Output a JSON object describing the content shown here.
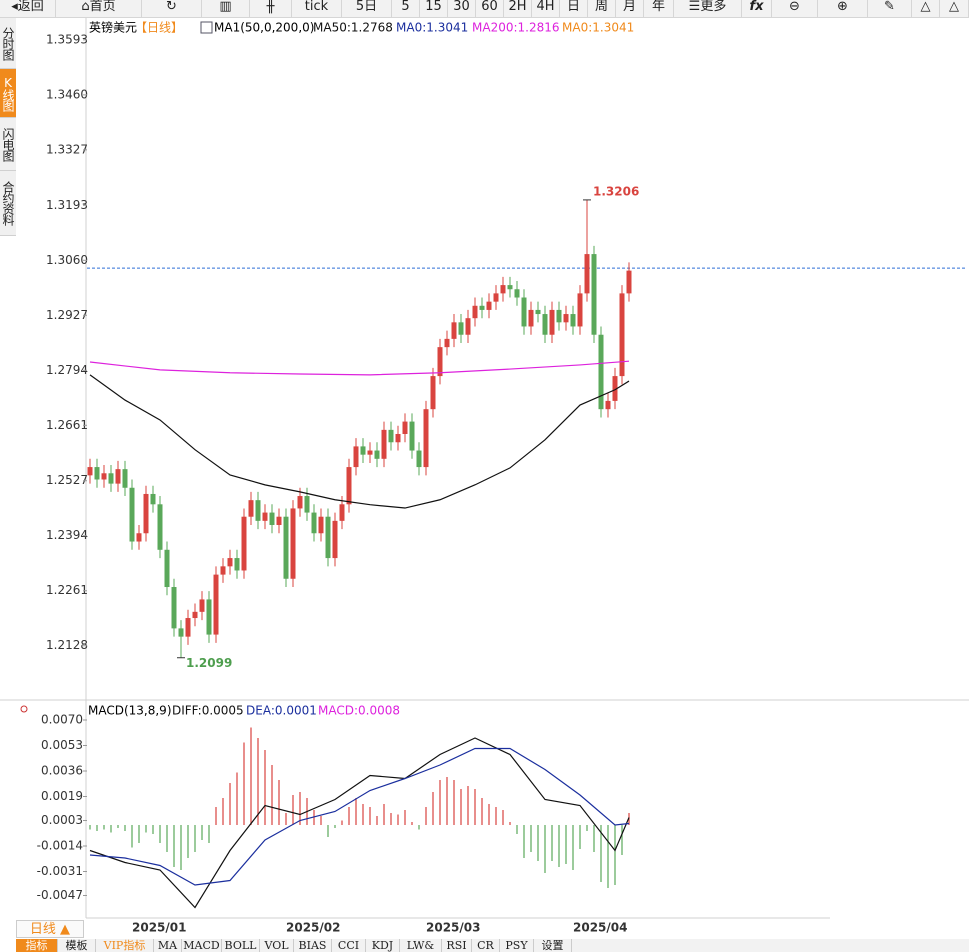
{
  "ui": {
    "toolbar": [
      "返回",
      "首页",
      "tick",
      "5日",
      "5",
      "15",
      "30",
      "60",
      "2H",
      "4H",
      "日",
      "周",
      "月",
      "年",
      "更多",
      "fx"
    ],
    "sidebar": [
      "分时图",
      "K线图",
      "闪电图",
      "合约资料"
    ],
    "period": "日线 ▲",
    "bottom_tabs": [
      "指标",
      "模板",
      "VIP指标",
      "MA",
      "MACD",
      "BOLL",
      "VOL",
      "BIAS",
      "CCI",
      "KDJ",
      "LW&",
      "RSI",
      "CR",
      "PSY",
      "设置"
    ]
  },
  "chart_data": [
    {
      "type": "candlestick",
      "title": "英镑美元",
      "period": "【日线】",
      "indicator": "MA1(50,0,200,0)",
      "categories": [
        null,
        null,
        null,
        null,
        null,
        null,
        "2025/01",
        null,
        null,
        null,
        null,
        null,
        null,
        null,
        null,
        null,
        null,
        null,
        null,
        null,
        null,
        null,
        null,
        null,
        null,
        null,
        null,
        null,
        "2025/02",
        null,
        null,
        null,
        null,
        null,
        null,
        null,
        null,
        null,
        null,
        null,
        null,
        null,
        null,
        null,
        null,
        null,
        null,
        null,
        "2025/03",
        null,
        null,
        null,
        null,
        null,
        null,
        null,
        null,
        null,
        null,
        null,
        null,
        null,
        null,
        null,
        null,
        null,
        null,
        null,
        null,
        "2025/04",
        null,
        null,
        null,
        null,
        null,
        null,
        null,
        null
      ],
      "open": [
        1.254,
        1.256,
        1.253,
        1.2545,
        1.252,
        1.2555,
        1.251,
        1.238,
        1.24,
        1.2495,
        1.247,
        1.236,
        1.227,
        1.217,
        1.215,
        1.2195,
        1.221,
        1.224,
        1.2155,
        1.23,
        1.232,
        1.234,
        1.231,
        1.244,
        1.248,
        1.243,
        1.245,
        1.242,
        1.244,
        1.229,
        1.246,
        1.249,
        1.245,
        1.24,
        1.244,
        1.234,
        1.243,
        1.247,
        1.256,
        1.261,
        1.259,
        1.26,
        1.258,
        1.265,
        1.262,
        1.264,
        1.267,
        1.26,
        1.256,
        1.27,
        1.278,
        1.285,
        1.287,
        1.291,
        1.288,
        1.292,
        1.295,
        1.294,
        1.296,
        1.298,
        1.3,
        1.299,
        1.297,
        1.29,
        1.294,
        1.293,
        1.288,
        1.294,
        1.291,
        1.293,
        1.29,
        1.298,
        1.3075,
        1.288,
        1.27,
        1.272,
        1.278,
        1.298
      ],
      "high": [
        1.258,
        1.258,
        1.2565,
        1.2565,
        1.2575,
        1.2575,
        1.253,
        1.242,
        1.2515,
        1.2515,
        1.249,
        1.238,
        1.229,
        1.219,
        1.2215,
        1.223,
        1.226,
        1.226,
        1.232,
        1.234,
        1.236,
        1.236,
        1.246,
        1.25,
        1.25,
        1.247,
        1.247,
        1.246,
        1.246,
        1.248,
        1.251,
        1.251,
        1.247,
        1.246,
        1.246,
        1.245,
        1.249,
        1.258,
        1.263,
        1.263,
        1.262,
        1.262,
        1.267,
        1.267,
        1.266,
        1.269,
        1.269,
        1.262,
        1.272,
        1.28,
        1.287,
        1.289,
        1.293,
        1.293,
        1.294,
        1.297,
        1.297,
        1.298,
        1.3,
        1.302,
        1.302,
        1.301,
        1.299,
        1.296,
        1.296,
        1.295,
        1.296,
        1.296,
        1.295,
        1.295,
        1.3,
        1.3206,
        1.3095,
        1.29,
        1.274,
        1.28,
        1.3,
        1.3055
      ],
      "low": [
        1.252,
        1.251,
        1.251,
        1.25,
        1.25,
        1.249,
        1.236,
        1.236,
        1.238,
        1.245,
        1.234,
        1.225,
        1.215,
        1.2099,
        1.213,
        1.2175,
        1.219,
        1.2135,
        1.2135,
        1.228,
        1.23,
        1.229,
        1.229,
        1.242,
        1.241,
        1.241,
        1.24,
        1.24,
        1.227,
        1.227,
        1.244,
        1.243,
        1.238,
        1.238,
        1.232,
        1.232,
        1.241,
        1.245,
        1.254,
        1.257,
        1.257,
        1.256,
        1.256,
        1.26,
        1.26,
        1.262,
        1.258,
        1.254,
        1.254,
        1.268,
        1.276,
        1.283,
        1.285,
        1.286,
        1.286,
        1.29,
        1.292,
        1.292,
        1.294,
        1.296,
        1.297,
        1.295,
        1.288,
        1.288,
        1.291,
        1.286,
        1.286,
        1.289,
        1.289,
        1.288,
        1.288,
        1.296,
        1.286,
        1.268,
        1.268,
        1.27,
        1.276,
        1.296
      ],
      "close": [
        1.256,
        1.253,
        1.2545,
        1.252,
        1.2555,
        1.251,
        1.238,
        1.24,
        1.2495,
        1.247,
        1.236,
        1.227,
        1.217,
        1.215,
        1.2195,
        1.221,
        1.224,
        1.2155,
        1.23,
        1.232,
        1.234,
        1.231,
        1.244,
        1.248,
        1.243,
        1.245,
        1.242,
        1.244,
        1.229,
        1.246,
        1.249,
        1.245,
        1.24,
        1.244,
        1.234,
        1.243,
        1.247,
        1.256,
        1.261,
        1.259,
        1.26,
        1.258,
        1.265,
        1.262,
        1.264,
        1.267,
        1.26,
        1.256,
        1.27,
        1.278,
        1.285,
        1.287,
        1.291,
        1.288,
        1.292,
        1.295,
        1.294,
        1.296,
        1.298,
        1.3,
        1.299,
        1.297,
        1.29,
        1.294,
        1.293,
        1.288,
        1.294,
        1.291,
        1.293,
        1.29,
        1.298,
        1.3075,
        1.288,
        1.27,
        1.272,
        1.278,
        1.298,
        1.3035
      ],
      "up_color": "#d9443f",
      "down_color": "#5aa85a",
      "high_label_color": "#d9443f",
      "low_label_color": "#4e9e4e",
      "series": [
        {
          "name": "MA50:1.2768",
          "color": "#111111",
          "x": [
            0,
            5,
            10,
            15,
            20,
            25,
            30,
            35,
            40,
            45,
            50,
            55,
            60,
            65,
            70,
            75,
            77
          ],
          "values": [
            1.2783,
            1.2722,
            1.2674,
            1.2602,
            1.2541,
            1.2517,
            1.25,
            1.2481,
            1.2469,
            1.2461,
            1.2481,
            1.2517,
            1.2558,
            1.2626,
            1.271,
            1.2747,
            1.2768
          ]
        },
        {
          "name": "MA200:1.2816",
          "color": "#dd22dd",
          "x": [
            0,
            10,
            20,
            30,
            40,
            50,
            60,
            70,
            77
          ],
          "values": [
            1.2814,
            1.2795,
            1.2788,
            1.2785,
            1.2783,
            1.2788,
            1.2797,
            1.2807,
            1.2816
          ]
        }
      ],
      "extra_labels": [
        {
          "text": "MA0:1.3041",
          "color": "#1b2f9e"
        },
        {
          "text": "MA0:1.3041",
          "color": "#f08a1c"
        }
      ],
      "hline": {
        "value": 1.3041,
        "color": "#2f6fd6"
      },
      "ylim": [
        1.2021,
        1.3641
      ],
      "yticks": [
        1.3593,
        {
          "value": 1.346,
          "label": "1.3460"
        },
        1.3327,
        1.3193,
        {
          "value": 1.306,
          "label": "1.3060"
        },
        1.2927,
        1.2794,
        1.2661,
        1.2527,
        1.2394,
        1.2261,
        1.2128
      ]
    },
    {
      "type": "macd",
      "title": "MACD(13,8,9)",
      "series": [
        {
          "name": "DIFF:0.0005",
          "color": "#111111",
          "x": [
            0,
            5,
            10,
            15,
            20,
            25,
            30,
            35,
            40,
            45,
            50,
            55,
            60,
            65,
            70,
            75,
            77
          ],
          "values": [
            -0.0017,
            -0.0025,
            -0.003,
            -0.0055,
            -0.0017,
            0.0013,
            0.0007,
            0.0017,
            0.0033,
            0.0031,
            0.0047,
            0.0058,
            0.0047,
            0.0017,
            0.0013,
            -0.0017,
            0.0005
          ]
        },
        {
          "name": "DEA:0.0001",
          "color": "#1b2f9e",
          "x": [
            0,
            5,
            10,
            15,
            20,
            25,
            30,
            35,
            40,
            45,
            50,
            55,
            60,
            65,
            70,
            75,
            77
          ],
          "values": [
            -0.002,
            -0.0022,
            -0.0027,
            -0.004,
            -0.0037,
            -0.001,
            0.0003,
            0.0009,
            0.0023,
            0.0031,
            0.004,
            0.0051,
            0.0051,
            0.0037,
            0.002,
            0.0,
            0.0001
          ]
        }
      ],
      "histogram": {
        "name": "MACD:0.0008",
        "color": "#dd22dd",
        "up_color": "#d9443f",
        "down_color": "#5aa85a",
        "values": [
          -0.0003,
          -0.0004,
          -0.0003,
          -0.0005,
          -0.0002,
          -0.0004,
          -0.0015,
          -0.0012,
          -0.0005,
          -0.0006,
          -0.0012,
          -0.0018,
          -0.0028,
          -0.003,
          -0.0022,
          -0.0018,
          -0.001,
          -0.0012,
          0.0012,
          0.0018,
          0.0028,
          0.0035,
          0.0055,
          0.0065,
          0.0058,
          0.005,
          0.004,
          0.003,
          0.0008,
          0.002,
          0.0022,
          0.0018,
          0.001,
          0.0006,
          -0.0008,
          -0.0002,
          0.0003,
          0.0012,
          0.0018,
          0.0014,
          0.0012,
          0.0006,
          0.0014,
          0.0008,
          0.0007,
          0.001,
          0.0002,
          -0.0003,
          0.0012,
          0.0022,
          0.003,
          0.0032,
          0.003,
          0.0024,
          0.0026,
          0.0024,
          0.0018,
          0.0014,
          0.0012,
          0.001,
          0.0002,
          -0.0006,
          -0.0022,
          -0.0018,
          -0.0024,
          -0.0032,
          -0.0024,
          -0.0028,
          -0.0026,
          -0.003,
          -0.0016,
          -0.0004,
          -0.0018,
          -0.0038,
          -0.0042,
          -0.004,
          -0.002,
          0.0008
        ]
      },
      "ylim": [
        -0.006,
        0.008
      ],
      "yticks": [
        {
          "value": 0.007,
          "label": "0.0070"
        },
        0.0053,
        0.0036,
        0.0019,
        0.0003,
        -0.0014,
        -0.0031,
        -0.0047
      ]
    }
  ]
}
